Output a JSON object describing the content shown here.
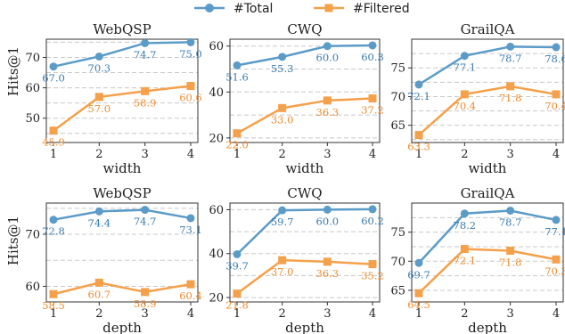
{
  "legend": {
    "total_label": "#Total",
    "filtered_label": "#Filtered"
  },
  "colors": {
    "total": "#5b9bc8",
    "filtered": "#f5a04a",
    "total_label": "#3a7bb0",
    "filtered_label": "#ef8b2c",
    "grid": "#c8c8c8",
    "axis": "#333333"
  },
  "ylabel": "Hits@1",
  "chart_data": [
    {
      "type": "line",
      "row": 0,
      "col": 0,
      "title": "WebQSP",
      "xlabel": "width",
      "categories": [
        "1",
        "2",
        "3",
        "4"
      ],
      "ylim": [
        42,
        76
      ],
      "yticks": [
        50,
        60,
        70
      ],
      "ytick_labels": [
        "50",
        "60",
        "70"
      ],
      "grid": "dashed-horizontal",
      "legend": "top-center",
      "series": [
        {
          "name": "#Total",
          "values": [
            67.0,
            70.3,
            74.7,
            75.0
          ],
          "labels": [
            "67.0",
            "70.3",
            "74.7",
            "75.0"
          ]
        },
        {
          "name": "#Filtered",
          "values": [
            45.9,
            57.0,
            58.9,
            60.6
          ],
          "labels": [
            "45.9",
            "57.0",
            "58.9",
            "60.6"
          ]
        }
      ]
    },
    {
      "type": "line",
      "row": 0,
      "col": 1,
      "title": "CWQ",
      "xlabel": "width",
      "categories": [
        "1",
        "2",
        "3",
        "4"
      ],
      "ylim": [
        18,
        63
      ],
      "yticks": [
        20,
        40,
        60
      ],
      "ytick_labels": [
        "20",
        "40",
        "60"
      ],
      "grid": "dashed-horizontal",
      "series": [
        {
          "name": "#Total",
          "values": [
            51.6,
            55.3,
            60.0,
            60.3
          ],
          "labels": [
            "51.6",
            "55.3",
            "60.0",
            "60.3"
          ]
        },
        {
          "name": "#Filtered",
          "values": [
            22.0,
            33.0,
            36.3,
            37.2
          ],
          "labels": [
            "22.0",
            "33.0",
            "36.3",
            "37.2"
          ]
        }
      ]
    },
    {
      "type": "line",
      "row": 0,
      "col": 2,
      "title": "GrailQA",
      "xlabel": "width",
      "categories": [
        "1",
        "2",
        "3",
        "4"
      ],
      "ylim": [
        62,
        80
      ],
      "yticks": [
        65,
        70,
        75
      ],
      "ytick_labels": [
        "65",
        "70",
        "75"
      ],
      "grid": "dashed-horizontal",
      "series": [
        {
          "name": "#Total",
          "values": [
            72.1,
            77.1,
            78.7,
            78.6
          ],
          "labels": [
            "72.1",
            "77.1",
            "78.7",
            "78.6"
          ]
        },
        {
          "name": "#Filtered",
          "values": [
            63.3,
            70.4,
            71.8,
            70.4
          ],
          "labels": [
            "63.3",
            "70.4",
            "71.8",
            "70.4"
          ]
        }
      ]
    },
    {
      "type": "line",
      "row": 1,
      "col": 0,
      "title": "WebQSP",
      "xlabel": "depth",
      "categories": [
        "1",
        "2",
        "3",
        "4"
      ],
      "ylim": [
        57,
        76
      ],
      "yticks": [
        60,
        70
      ],
      "ytick_labels": [
        "60",
        "70"
      ],
      "grid": "dashed-horizontal",
      "series": [
        {
          "name": "#Total",
          "values": [
            72.8,
            74.4,
            74.7,
            73.1
          ],
          "labels": [
            "72.8",
            "74.4",
            "74.7",
            "73.1"
          ]
        },
        {
          "name": "#Filtered",
          "values": [
            58.5,
            60.7,
            58.9,
            60.4
          ],
          "labels": [
            "58.5",
            "60.7",
            "58.9",
            "60.4"
          ]
        }
      ]
    },
    {
      "type": "line",
      "row": 1,
      "col": 1,
      "title": "CWQ",
      "xlabel": "depth",
      "categories": [
        "1",
        "2",
        "3",
        "4"
      ],
      "ylim": [
        18,
        63
      ],
      "yticks": [
        20,
        40,
        60
      ],
      "ytick_labels": [
        "20",
        "40",
        "60"
      ],
      "grid": "dashed-horizontal",
      "series": [
        {
          "name": "#Total",
          "values": [
            39.7,
            59.7,
            60.0,
            60.2
          ],
          "labels": [
            "39.7",
            "59.7",
            "60.0",
            "60.2"
          ]
        },
        {
          "name": "#Filtered",
          "values": [
            21.8,
            37.0,
            36.3,
            35.2
          ],
          "labels": [
            "21.8",
            "37.0",
            "36.3",
            "35.2"
          ]
        }
      ]
    },
    {
      "type": "line",
      "row": 1,
      "col": 2,
      "title": "GrailQA",
      "xlabel": "depth",
      "categories": [
        "1",
        "2",
        "3",
        "4"
      ],
      "ylim": [
        63,
        80
      ],
      "yticks": [
        65,
        70,
        75
      ],
      "ytick_labels": [
        "65",
        "70",
        "75"
      ],
      "grid": "dashed-horizontal",
      "series": [
        {
          "name": "#Total",
          "values": [
            69.7,
            78.2,
            78.7,
            77.1
          ],
          "labels": [
            "69.7",
            "78.2",
            "78.7",
            "77.1"
          ]
        },
        {
          "name": "#Filtered",
          "values": [
            64.5,
            72.1,
            71.8,
            70.3
          ],
          "labels": [
            "64.5",
            "72.1",
            "71.8",
            "70.3"
          ]
        }
      ]
    }
  ]
}
